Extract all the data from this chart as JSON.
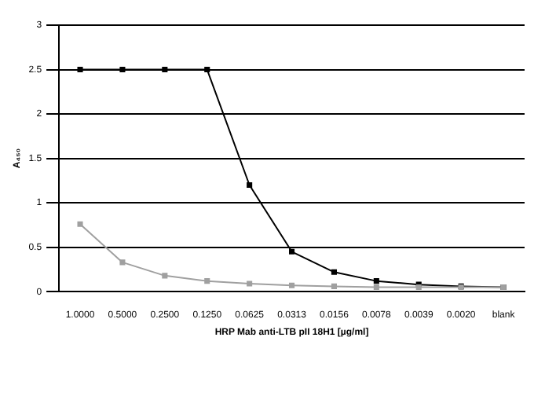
{
  "chart_data": {
    "type": "line",
    "xlabel": "HRP Mab anti-LTB pII 18H1 [µg/ml]",
    "ylabel": "A₄₅₀",
    "categories": [
      "1.0000",
      "0.5000",
      "0.2500",
      "0.1250",
      "0.0625",
      "0.0313",
      "0.0156",
      "0.0078",
      "0.0039",
      "0.0020",
      "blank"
    ],
    "series": [
      {
        "color": "#a0a0a0",
        "values": [
          0.76,
          0.33,
          0.18,
          0.12,
          0.09,
          0.07,
          0.06,
          0.05,
          0.05,
          0.05,
          0.05
        ]
      },
      {
        "color": "#000000",
        "values": [
          2.5,
          2.5,
          2.5,
          2.5,
          1.2,
          0.45,
          0.22,
          0.12,
          0.08,
          0.06,
          0.05
        ]
      }
    ],
    "ylim": [
      0,
      3
    ],
    "yticks": [
      0,
      0.5,
      1,
      1.5,
      2,
      2.5,
      3
    ],
    "grid": "y",
    "marker": "square",
    "line_style": "solid"
  }
}
